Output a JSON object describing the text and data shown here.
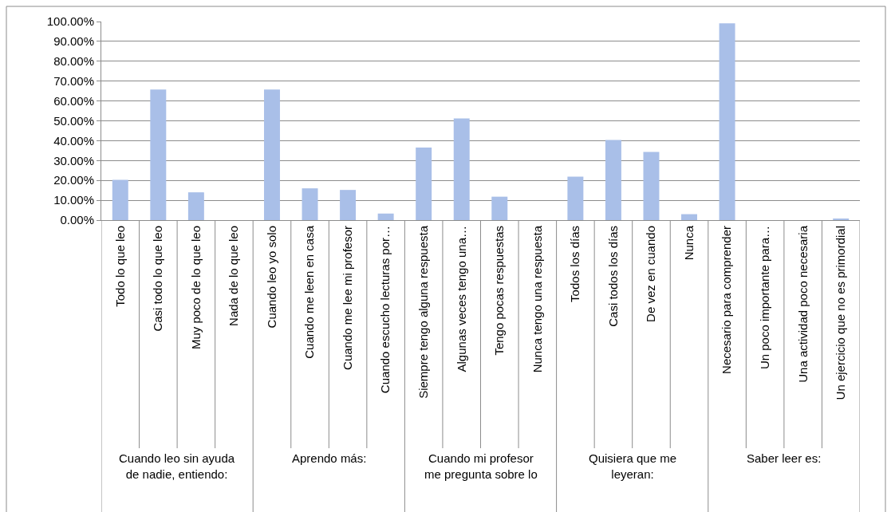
{
  "chart_data": {
    "type": "bar",
    "categories": [
      "Todo lo que leo",
      "Casi todo lo que leo",
      "Muy poco de lo que leo",
      "Nada de lo que leo",
      "Cuando leo yo solo",
      "Cuando me leen en casa",
      "Cuando me lee mi profesor",
      "Cuando escucho lecturas por…",
      "Siempre tengo alguna respuesta",
      "Algunas veces tengo una…",
      "Tengo pocas respuestas",
      "Nunca tengo una respuesta",
      "Todos los días",
      "Casi todos los días",
      "De vez en cuando",
      "Nunca",
      "Necesario para comprender",
      "Un poco importante para…",
      "Una actividad poco necesaria",
      "Un ejercicio que no es primordial"
    ],
    "values": [
      20.3,
      65.8,
      14.0,
      0,
      65.8,
      16.0,
      15.2,
      3.3,
      36.5,
      51.2,
      11.8,
      0,
      21.9,
      40.4,
      34.3,
      3.0,
      99.1,
      0,
      0,
      0.6
    ],
    "color": "#a9bfe8",
    "annotations": [
      "Cuando leo sin ayuda de nadie, entiendo:",
      "Aprendo más:",
      "Cuando mi profesor me pregunta sobre lo",
      "Quisiera que me leyeran:",
      "Saber leer es:"
    ],
    "ylim": [
      0,
      100
    ],
    "yticks": [
      {
        "value": 0,
        "label": "0.00%"
      },
      {
        "value": 10,
        "label": "10.00%"
      },
      {
        "value": 20,
        "label": "20.00%"
      },
      {
        "value": 30,
        "label": "30.00%"
      },
      {
        "value": 40,
        "label": "40.00%"
      },
      {
        "value": 50,
        "label": "50.00%"
      },
      {
        "value": 60,
        "label": "60.00%"
      },
      {
        "value": 70,
        "label": "70.00%"
      },
      {
        "value": 80,
        "label": "80.00%"
      },
      {
        "value": 90,
        "label": "90.00%"
      },
      {
        "value": 100,
        "label": "100.00%"
      }
    ],
    "grid": "y"
  }
}
